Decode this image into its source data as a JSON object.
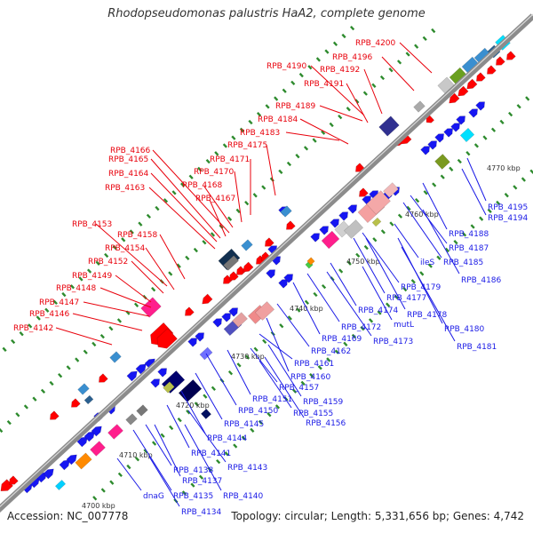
{
  "title": "Rhodopseudomonas palustris HaA2, complete genome",
  "footer": {
    "accession": "Accession: NC_007778",
    "summary": "Topology: circular; Length: 5,331,656 bp; Genes: 4,742"
  },
  "colors": {
    "minus_label": "#e8000b",
    "plus_label": "#1a1ae6",
    "backbone": "#8c8c8c",
    "tick": "#2e8b2e"
  },
  "scale_ticks": [
    "4700 kbp",
    "4710 kbp",
    "4720 kbp",
    "4730 kbp",
    "4740 kbp",
    "4750 kbp",
    "4760 kbp",
    "4770 kbp"
  ],
  "minus_strand_labels": [
    "RPB_4142",
    "RPB_4146",
    "RPB_4147",
    "RPB_4148",
    "RPB_4149",
    "RPB_4152",
    "RPB_4153",
    "RPB_4154",
    "RPB_4158",
    "RPB_4163",
    "RPB_4164",
    "RPB_4165",
    "RPB_4166",
    "RPB_4167",
    "RPB_4168",
    "RPB_4170",
    "RPB_4171",
    "RPB_4175",
    "RPB_4183",
    "RPB_4184",
    "RPB_4189",
    "RPB_4191",
    "RPB_4190",
    "RPB_4192",
    "RPB_4196",
    "RPB_4200"
  ],
  "plus_strand_labels": [
    "RPB_4195",
    "RPB_4194",
    "RPB_4188",
    "RPB_4187",
    "RPB_4185",
    "RPB_4186",
    "ileS",
    "RPB_4179",
    "RPB_4177",
    "RPB_4178",
    "RPB_4174",
    "mutL",
    "RPB_4180",
    "RPB_4181",
    "RPB_4172",
    "RPB_4173",
    "RPB_4169",
    "RPB_4162",
    "RPB_4161",
    "RPB_4160",
    "RPB_4157",
    "RPB_4159",
    "RPB_4151",
    "RPB_4155",
    "RPB_4150",
    "RPB_4156",
    "RPB_4145",
    "RPB_4144",
    "RPB_4141",
    "RPB_4143",
    "RPB_4138",
    "RPB_4137",
    "RPB_4140",
    "RPB_4135",
    "dnaG",
    "RPB_4134"
  ]
}
